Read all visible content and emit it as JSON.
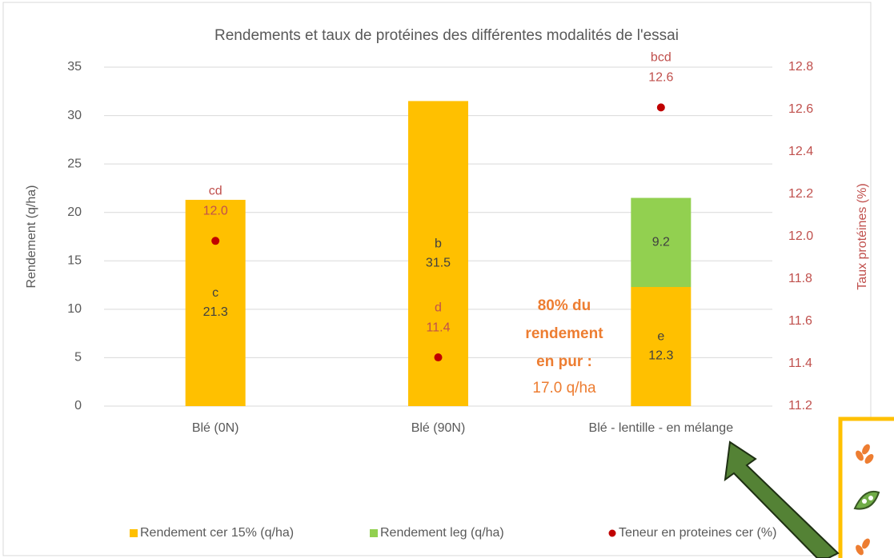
{
  "chart_data": {
    "type": "bar",
    "title": "Rendements et taux de protéines des différentes modalités de l'essai",
    "y_label": "Rendement (q/ha)",
    "y2_label": "Taux protéines (%)",
    "categories": [
      "Blé (0N)",
      "Blé (90N)",
      "Blé - lentille - en mélange"
    ],
    "series": [
      {
        "name": "Rendement cer 15% (q/ha)",
        "color": "#ffc000",
        "values": [
          21.3,
          31.5,
          12.3
        ],
        "letters": [
          "c",
          "b",
          "e"
        ]
      },
      {
        "name": "Rendement leg (q/ha)",
        "color": "#92d050",
        "values": [
          null,
          null,
          9.2
        ]
      },
      {
        "name": "Teneur en proteines cer (%)",
        "color": "#c00000",
        "axis": "y2",
        "type": "scatter",
        "values": [
          11.98,
          11.43,
          12.61
        ],
        "value_labels": [
          "12.0",
          "11.4",
          "12.6"
        ],
        "letters": [
          "cd",
          "d",
          "bcd"
        ]
      }
    ],
    "ylim": [
      0,
      35
    ],
    "yticks": [
      0,
      5,
      10,
      15,
      20,
      25,
      30,
      35
    ],
    "y2lim": [
      11.2,
      12.8
    ],
    "y2ticks": [
      11.2,
      11.4,
      11.6,
      11.8,
      {
        "value": 12,
        "label": "12.0"
      },
      12.2,
      12.4,
      12.6,
      12.8
    ],
    "grid": true,
    "legend": "bottom",
    "annotation": {
      "bold_lines": [
        "80% du",
        "rendement",
        "en pur :"
      ],
      "text": "17.0 q/ha"
    }
  }
}
